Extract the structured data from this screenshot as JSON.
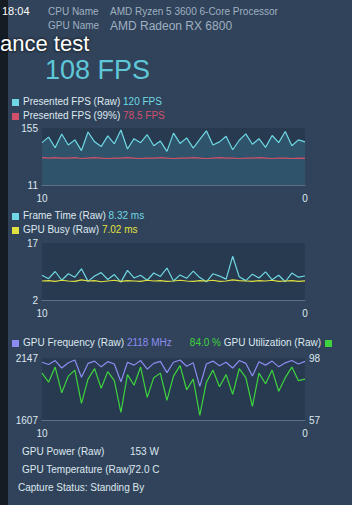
{
  "overlay": {
    "clock": "18:04",
    "cpu": {
      "label": "CPU Name",
      "value": "AMD Ryzen 5 3600 6-Core Processor"
    },
    "gpu": {
      "label": "GPU Name",
      "value": "AMD Radeon RX 6800"
    },
    "caption": "ance test",
    "fps": "108 FPS",
    "footer": [
      {
        "label": "GPU Power (Raw)",
        "value": "153 W"
      },
      {
        "label": "GPU Temperature (Raw)",
        "value": "72.0 C"
      }
    ],
    "status": "Capture Status: Standing By"
  },
  "chart_data": [
    {
      "type": "line",
      "grid": false,
      "x": [
        10,
        9.75,
        9.5,
        9.25,
        9,
        8.75,
        8.5,
        8.25,
        8,
        7.75,
        7.5,
        7.25,
        7,
        6.75,
        6.5,
        6.25,
        6,
        5.75,
        5.5,
        5.25,
        5,
        4.75,
        4.5,
        4.25,
        4,
        3.75,
        3.5,
        3.25,
        3,
        2.75,
        2.5,
        2.25,
        2,
        1.75,
        1.5,
        1.25,
        1,
        0.75,
        0.5,
        0.25,
        0
      ],
      "xlim": [
        10,
        0
      ],
      "xticks": [
        10,
        0
      ],
      "ylim": [
        11,
        155
      ],
      "yticks": [
        11,
        155
      ],
      "series": [
        {
          "name": "Presented FPS (Raw)",
          "readout": "120 FPS",
          "color": "#6fd8e4",
          "type": "area",
          "values": [
            118,
            132,
            105,
            140,
            112,
            125,
            98,
            145,
            120,
            108,
            135,
            115,
            150,
            102,
            128,
            118,
            138,
            110,
            122,
            96,
            142,
            116,
            130,
            104,
            126,
            148,
            112,
            120,
            134,
            100,
            124,
            140,
            114,
            128,
            106,
            136,
            118,
            146,
            110,
            125,
            120
          ]
        },
        {
          "name": "Presented FPS (99%)",
          "readout": "78.5 FPS",
          "color": "#d0506a",
          "type": "line",
          "values": [
            80,
            79,
            80,
            79,
            79,
            80,
            78,
            79,
            80,
            79,
            78,
            79,
            79,
            80,
            79,
            78,
            79,
            79,
            80,
            79,
            78,
            79,
            79,
            80,
            79,
            78,
            79,
            80,
            79,
            79,
            78,
            79,
            79,
            80,
            79,
            78,
            79,
            79,
            78,
            79,
            78.5
          ]
        }
      ]
    },
    {
      "type": "line",
      "grid": false,
      "x": [
        10,
        9.75,
        9.5,
        9.25,
        9,
        8.75,
        8.5,
        8.25,
        8,
        7.75,
        7.5,
        7.25,
        7,
        6.75,
        6.5,
        6.25,
        6,
        5.75,
        5.5,
        5.25,
        5,
        4.75,
        4.5,
        4.25,
        4,
        3.75,
        3.5,
        3.25,
        3,
        2.75,
        2.5,
        2.25,
        2,
        1.75,
        1.5,
        1.25,
        1,
        0.75,
        0.5,
        0.25,
        0
      ],
      "xlim": [
        10,
        0
      ],
      "xticks": [
        10,
        0
      ],
      "ylim": [
        2,
        17
      ],
      "yticks": [
        2,
        17
      ],
      "series": [
        {
          "name": "Frame Time (Raw)",
          "readout": "8.32 ms",
          "color": "#6fd8e4",
          "type": "line",
          "values": [
            8.5,
            7.6,
            9.5,
            7.2,
            8.9,
            8.0,
            10.2,
            6.9,
            8.3,
            9.2,
            7.4,
            8.7,
            6.7,
            9.8,
            7.8,
            8.5,
            7.2,
            9.1,
            8.2,
            10.4,
            7.0,
            8.6,
            7.7,
            9.6,
            7.9,
            6.8,
            8.9,
            8.3,
            7.5,
            13.5,
            8.1,
            7.1,
            8.8,
            7.8,
            9.4,
            7.3,
            8.5,
            6.8,
            9.1,
            8.0,
            8.32
          ]
        },
        {
          "name": "GPU Busy (Raw)",
          "readout": "7.02 ms",
          "color": "#e0e040",
          "type": "line",
          "values": [
            7.0,
            7.1,
            6.9,
            7.2,
            7.0,
            6.9,
            7.3,
            7.0,
            7.1,
            6.8,
            7.0,
            7.2,
            6.9,
            7.1,
            7.0,
            6.9,
            7.2,
            7.0,
            7.1,
            6.9,
            7.0,
            7.2,
            7.0,
            6.9,
            7.1,
            7.0,
            7.2,
            6.9,
            7.0,
            7.3,
            7.1,
            7.0,
            6.9,
            7.1,
            7.0,
            7.2,
            6.9,
            7.0,
            7.1,
            6.9,
            7.02
          ]
        }
      ]
    },
    {
      "type": "line",
      "grid": false,
      "x": [
        10,
        9.75,
        9.5,
        9.25,
        9,
        8.75,
        8.5,
        8.25,
        8,
        7.75,
        7.5,
        7.25,
        7,
        6.75,
        6.5,
        6.25,
        6,
        5.75,
        5.5,
        5.25,
        5,
        4.75,
        4.5,
        4.25,
        4,
        3.75,
        3.5,
        3.25,
        3,
        2.75,
        2.5,
        2.25,
        2,
        1.75,
        1.5,
        1.25,
        1,
        0.75,
        0.5,
        0.25,
        0
      ],
      "xlim": [
        10,
        0
      ],
      "xticks": [
        10,
        0
      ],
      "ylim": [
        1607,
        2147
      ],
      "yticks": [
        1607,
        2147
      ],
      "y2lim": [
        57,
        98
      ],
      "y2ticks": [
        57,
        98
      ],
      "series": [
        {
          "name": "GPU Frequency (Raw)",
          "readout": "2118 MHz",
          "color": "#8c8cf0",
          "type": "line",
          "values": [
            2110,
            2090,
            2125,
            2060,
            2105,
            2130,
            1980,
            2100,
            2120,
            2070,
            2115,
            2095,
            1940,
            2110,
            2085,
            2125,
            2050,
            2100,
            2118,
            2020,
            2110,
            2130,
            2075,
            2105,
            1900,
            2095,
            2120,
            2080,
            2110,
            2060,
            2125,
            2100,
            1990,
            2115,
            2085,
            2120,
            2070,
            2105,
            2125,
            2095,
            2118
          ]
        },
        {
          "name": "GPU Utilization (Raw)",
          "readout": "84.0 %",
          "color": "#3ed43e",
          "type": "line",
          "axis": "y2",
          "values": [
            88,
            82,
            92,
            75,
            86,
            90,
            68,
            84,
            91,
            78,
            89,
            83,
            62,
            87,
            80,
            92,
            72,
            85,
            88,
            70,
            86,
            93,
            77,
            84,
            60,
            82,
            90,
            79,
            87,
            74,
            91,
            85,
            66,
            88,
            81,
            90,
            76,
            85,
            92,
            83,
            84.0
          ]
        }
      ]
    }
  ]
}
